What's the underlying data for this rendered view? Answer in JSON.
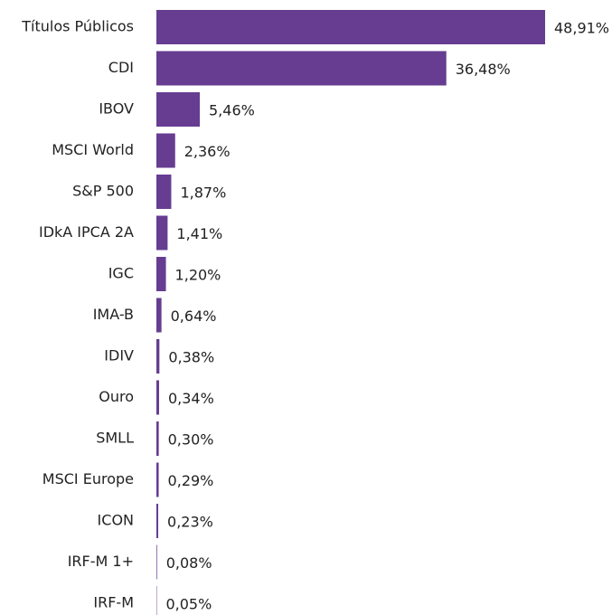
{
  "chart_data": {
    "type": "bar",
    "orientation": "horizontal",
    "categories": [
      "Títulos Públicos",
      "CDI",
      "IBOV",
      "MSCI World",
      "S&P 500",
      "IDkA IPCA 2A",
      "IGC",
      "IMA-B",
      "IDIV",
      "Ouro",
      "SMLL",
      "MSCI Europe",
      "ICON",
      "IRF-M 1+",
      "IRF-M"
    ],
    "values": [
      48.91,
      36.48,
      5.46,
      2.36,
      1.87,
      1.41,
      1.2,
      0.64,
      0.38,
      0.34,
      0.3,
      0.29,
      0.23,
      0.08,
      0.05
    ],
    "value_labels": [
      "48,91%",
      "36,48%",
      "5,46%",
      "2,36%",
      "1,87%",
      "1,41%",
      "1,20%",
      "0,64%",
      "0,38%",
      "0,34%",
      "0,30%",
      "0,29%",
      "0,23%",
      "0,08%",
      "0,05%"
    ],
    "color": "#663d91"
  }
}
